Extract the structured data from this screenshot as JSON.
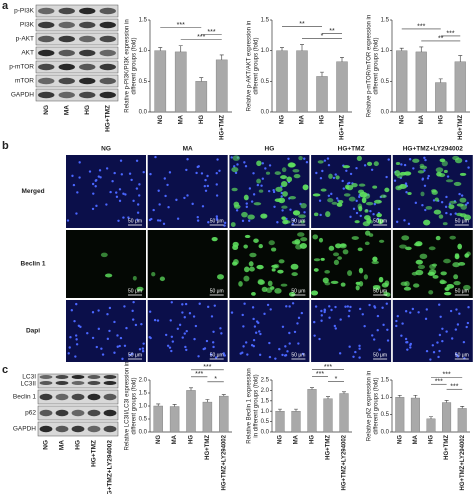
{
  "panel_labels": [
    "a",
    "b",
    "c"
  ],
  "blots": [
    {
      "labels": [
        "p-PI3K",
        "PI3K",
        "p-AKT",
        "AKT",
        "p-mTOR",
        "mTOR",
        "GAPDH"
      ],
      "lanes": [
        "NG",
        "MA",
        "HG",
        "HG+TMZ"
      ]
    },
    {
      "labels": [
        "LC3I",
        "LC3II",
        "Beclin 1",
        "p62",
        "GAPDH"
      ],
      "lanes": [
        "NG",
        "MA",
        "HG",
        "HG+TMZ",
        "HG+TMZ+LY294002"
      ]
    }
  ],
  "micrographs": {
    "columns": [
      "NG",
      "MA",
      "HG",
      "HG+TMZ",
      "HG+TMZ+LY294002"
    ],
    "rows": [
      "Merged",
      "Beclin 1",
      "Dapi"
    ],
    "scale_bar": "50 μm"
  },
  "chart_data": [
    {
      "type": "bar",
      "y_label": "Relative p-PI3K/PI3K expression in different groups (fold)",
      "categories": [
        "NG",
        "MA",
        "HG",
        "HG+TMZ"
      ],
      "values": [
        1.0,
        0.98,
        0.5,
        0.85
      ],
      "errors": [
        0.05,
        0.1,
        0.06,
        0.08
      ],
      "color": "#a9a9a9",
      "ylim": [
        0,
        1.5
      ],
      "yticks": [
        {
          "value": 0,
          "label": "0.0"
        },
        0.5,
        {
          "value": 1,
          "label": "1.0"
        },
        1.5
      ],
      "annotations": [
        "***",
        "***",
        "***"
      ]
    },
    {
      "type": "bar",
      "y_label": "Relative p-AKT/AKT expression in different groups (fold)",
      "categories": [
        "NG",
        "MA",
        "HG",
        "HG+TMZ"
      ],
      "values": [
        1.0,
        1.0,
        0.58,
        0.82
      ],
      "errors": [
        0.05,
        0.1,
        0.07,
        0.07
      ],
      "color": "#a9a9a9",
      "ylim": [
        0,
        1.5
      ],
      "yticks": [
        {
          "value": 0,
          "label": "0.0"
        },
        0.5,
        {
          "value": 1,
          "label": "1.0"
        },
        1.5
      ],
      "annotations": [
        "**",
        "**",
        "*"
      ]
    },
    {
      "type": "bar",
      "y_label": "Relative p-mTOR/mTOR expression in different groups (fold)",
      "categories": [
        "NG",
        "MA",
        "HG",
        "HG+TMZ"
      ],
      "values": [
        1.0,
        0.98,
        0.48,
        0.82
      ],
      "errors": [
        0.04,
        0.08,
        0.06,
        0.1
      ],
      "color": "#a9a9a9",
      "ylim": [
        0,
        1.5
      ],
      "yticks": [
        {
          "value": 0,
          "label": "0.0"
        },
        0.5,
        {
          "value": 1,
          "label": "1.0"
        },
        1.5
      ],
      "annotations": [
        "***",
        "***",
        "**"
      ]
    },
    {
      "type": "bar",
      "y_label": "Relative LC3II/LC3I expression in different groups (fold)",
      "categories": [
        "NG",
        "MA",
        "HG",
        "HG+TMZ",
        "HG+TMZ+LY294002"
      ],
      "values": [
        1.0,
        0.98,
        1.6,
        1.15,
        1.38
      ],
      "errors": [
        0.08,
        0.08,
        0.1,
        0.1,
        0.06
      ],
      "color": "#a9a9a9",
      "ylim": [
        0,
        2
      ],
      "yticks": [
        {
          "value": 0,
          "label": "0.0"
        },
        0.5,
        {
          "value": 1,
          "label": "1.0"
        },
        1.5,
        {
          "value": 2,
          "label": "2.0"
        }
      ],
      "annotations": [
        "***",
        "***",
        "*"
      ]
    },
    {
      "type": "bar",
      "y_label": "Relative Beclin 1 expression in different groups (fold)",
      "categories": [
        "NG",
        "MA",
        "HG",
        "HG+TMZ",
        "HG+TMZ+LY294002"
      ],
      "values": [
        1.0,
        1.0,
        2.05,
        1.6,
        1.85
      ],
      "errors": [
        0.1,
        0.1,
        0.08,
        0.1,
        0.08
      ],
      "color": "#a9a9a9",
      "ylim": [
        0,
        2.5
      ],
      "yticks": [
        {
          "value": 0,
          "label": "0.0"
        },
        0.5,
        {
          "value": 1,
          "label": "1.0"
        },
        1.5,
        {
          "value": 2,
          "label": "2.0"
        },
        2.5
      ],
      "annotations": [
        "***",
        "***",
        "*"
      ]
    },
    {
      "type": "bar",
      "y_label": "Relative p62 expression in different groups (fold)",
      "categories": [
        "NG",
        "MA",
        "HG",
        "HG+TMZ",
        "HG+TMZ+LY294002"
      ],
      "values": [
        1.0,
        0.98,
        0.38,
        0.85,
        0.68
      ],
      "errors": [
        0.06,
        0.08,
        0.06,
        0.06,
        0.06
      ],
      "color": "#a9a9a9",
      "ylim": [
        0,
        1.5
      ],
      "yticks": [
        {
          "value": 0,
          "label": "0.0"
        },
        0.5,
        {
          "value": 1,
          "label": "1.0"
        },
        1.5
      ],
      "annotations": [
        "***",
        "***",
        "***"
      ]
    }
  ]
}
